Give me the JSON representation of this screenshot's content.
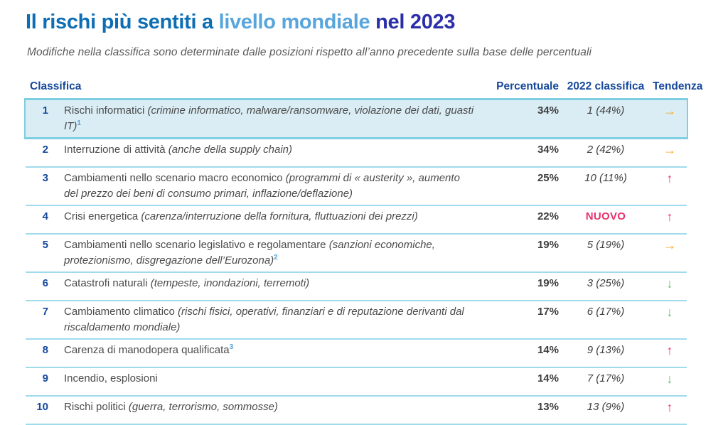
{
  "title": {
    "part1": "Il rischi più sentiti a ",
    "part2": "livello mondiale",
    "part3": " nel 2023",
    "color_main": "#0D6EB4",
    "color_light": "#57A5DC",
    "color_dark": "#2B2EA8"
  },
  "subtitle": "Modifiche nella classifica sono determinate dalle posizioni rispetto all’anno precedente sulla base delle percentuali",
  "table": {
    "headers": {
      "classifica": "Classifica",
      "percent": "Percentuale",
      "prev": "2022 classifica",
      "trend": "Tendenza"
    },
    "rows": [
      {
        "rank": "1",
        "name": "Rischi informatici",
        "detail": " (crimine informatico, malware/ransomware, violazione dei dati, guasti IT)",
        "sup": "1",
        "percent": "34%",
        "prev": "1 (44%)",
        "trend": "right",
        "highlight": true
      },
      {
        "rank": "2",
        "name": "Interruzione di attività",
        "detail": " (anche della supply chain)",
        "sup": "",
        "percent": "34%",
        "prev": "2 (42%)",
        "trend": "right",
        "highlight": false
      },
      {
        "rank": "3",
        "name": "Cambiamenti nello scenario macro economico",
        "detail": " (programmi di « austerity », aumento del prezzo dei beni di consumo primari, inflazione/deflazione)",
        "sup": "",
        "percent": "25%",
        "prev": "10 (11%)",
        "trend": "up",
        "highlight": false
      },
      {
        "rank": "4",
        "name": "Crisi energetica",
        "detail": " (carenza/interruzione della fornitura, fluttuazioni dei prezzi)",
        "sup": "",
        "percent": "22%",
        "prev": "NUOVO",
        "prev_new": true,
        "trend": "up",
        "highlight": false
      },
      {
        "rank": "5",
        "name": "Cambiamenti nello scenario legislativo e regolamentare",
        "detail": " (sanzioni economiche, protezionismo, disgregazione dell’Eurozona)",
        "sup": "2",
        "percent": "19%",
        "prev": "5 (19%)",
        "trend": "right",
        "highlight": false
      },
      {
        "rank": "6",
        "name": "Catastrofi naturali",
        "detail": " (tempeste, inondazioni, terremoti)",
        "sup": "",
        "percent": "19%",
        "prev": "3 (25%)",
        "trend": "down",
        "highlight": false
      },
      {
        "rank": "7",
        "name": "Cambiamento climatico",
        "detail": " (rischi fisici, operativi, finanziari e di reputazione derivanti dal riscaldamento mondiale)",
        "sup": "",
        "percent": "17%",
        "prev": "6 (17%)",
        "trend": "down",
        "highlight": false
      },
      {
        "rank": "8",
        "name": "Carenza di manodopera qualificata",
        "detail": "",
        "sup": "3",
        "percent": "14%",
        "prev": "9 (13%)",
        "trend": "up",
        "highlight": false
      },
      {
        "rank": "9",
        "name": "Incendio, esplosioni",
        "detail": "",
        "sup": "",
        "percent": "14%",
        "prev": "7 (17%)",
        "trend": "down",
        "highlight": false
      },
      {
        "rank": "10",
        "name": "Rischi politici",
        "detail": " (guerra, terrorismo, sommosse)",
        "sup": "",
        "percent": "13%",
        "prev": "13 (9%)",
        "trend": "up",
        "highlight": false
      }
    ]
  },
  "trend_symbols": {
    "right": {
      "glyph": "→",
      "color": "#F8A41E",
      "label": "unchanged"
    },
    "up": {
      "glyph": "↑",
      "color": "#E93A68",
      "label": "risen"
    },
    "down": {
      "glyph": "↓",
      "color": "#68B96E",
      "label": "fallen"
    }
  },
  "colors": {
    "highlight_row_bg": "#DAEDF4",
    "highlight_row_border": "#7FCEE2",
    "row_separator": "#9FDBEA",
    "header_blue": "#16499B",
    "new_badge_pink": "#E7316B",
    "footnote_blue": "#55A0D6"
  }
}
